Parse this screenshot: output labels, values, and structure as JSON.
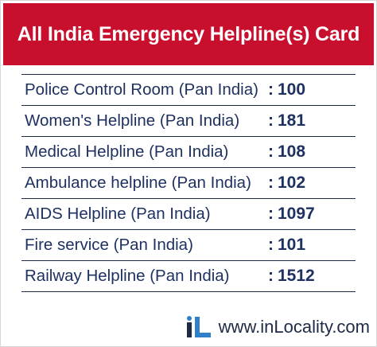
{
  "header": {
    "title": "All India Emergency Helpline(s) Card"
  },
  "separator": ":",
  "rows": [
    {
      "label": "Police Control Room (Pan India)",
      "number": "100"
    },
    {
      "label": "Women's Helpline (Pan India)",
      "number": "181"
    },
    {
      "label": "Medical Helpline (Pan India)",
      "number": "108"
    },
    {
      "label": "Ambulance helpline (Pan India)",
      "number": "102"
    },
    {
      "label": "AIDS Helpline (Pan India)",
      "number": "1097"
    },
    {
      "label": "Fire service (Pan India)",
      "number": "101"
    },
    {
      "label": "Railway Helpline (Pan India)",
      "number": "1512"
    }
  ],
  "footer": {
    "logo_icon": "inlocality-logo-icon",
    "website": "www.inLocality.com"
  },
  "colors": {
    "header_bg": "#c8102e",
    "text": "#1e3160"
  }
}
